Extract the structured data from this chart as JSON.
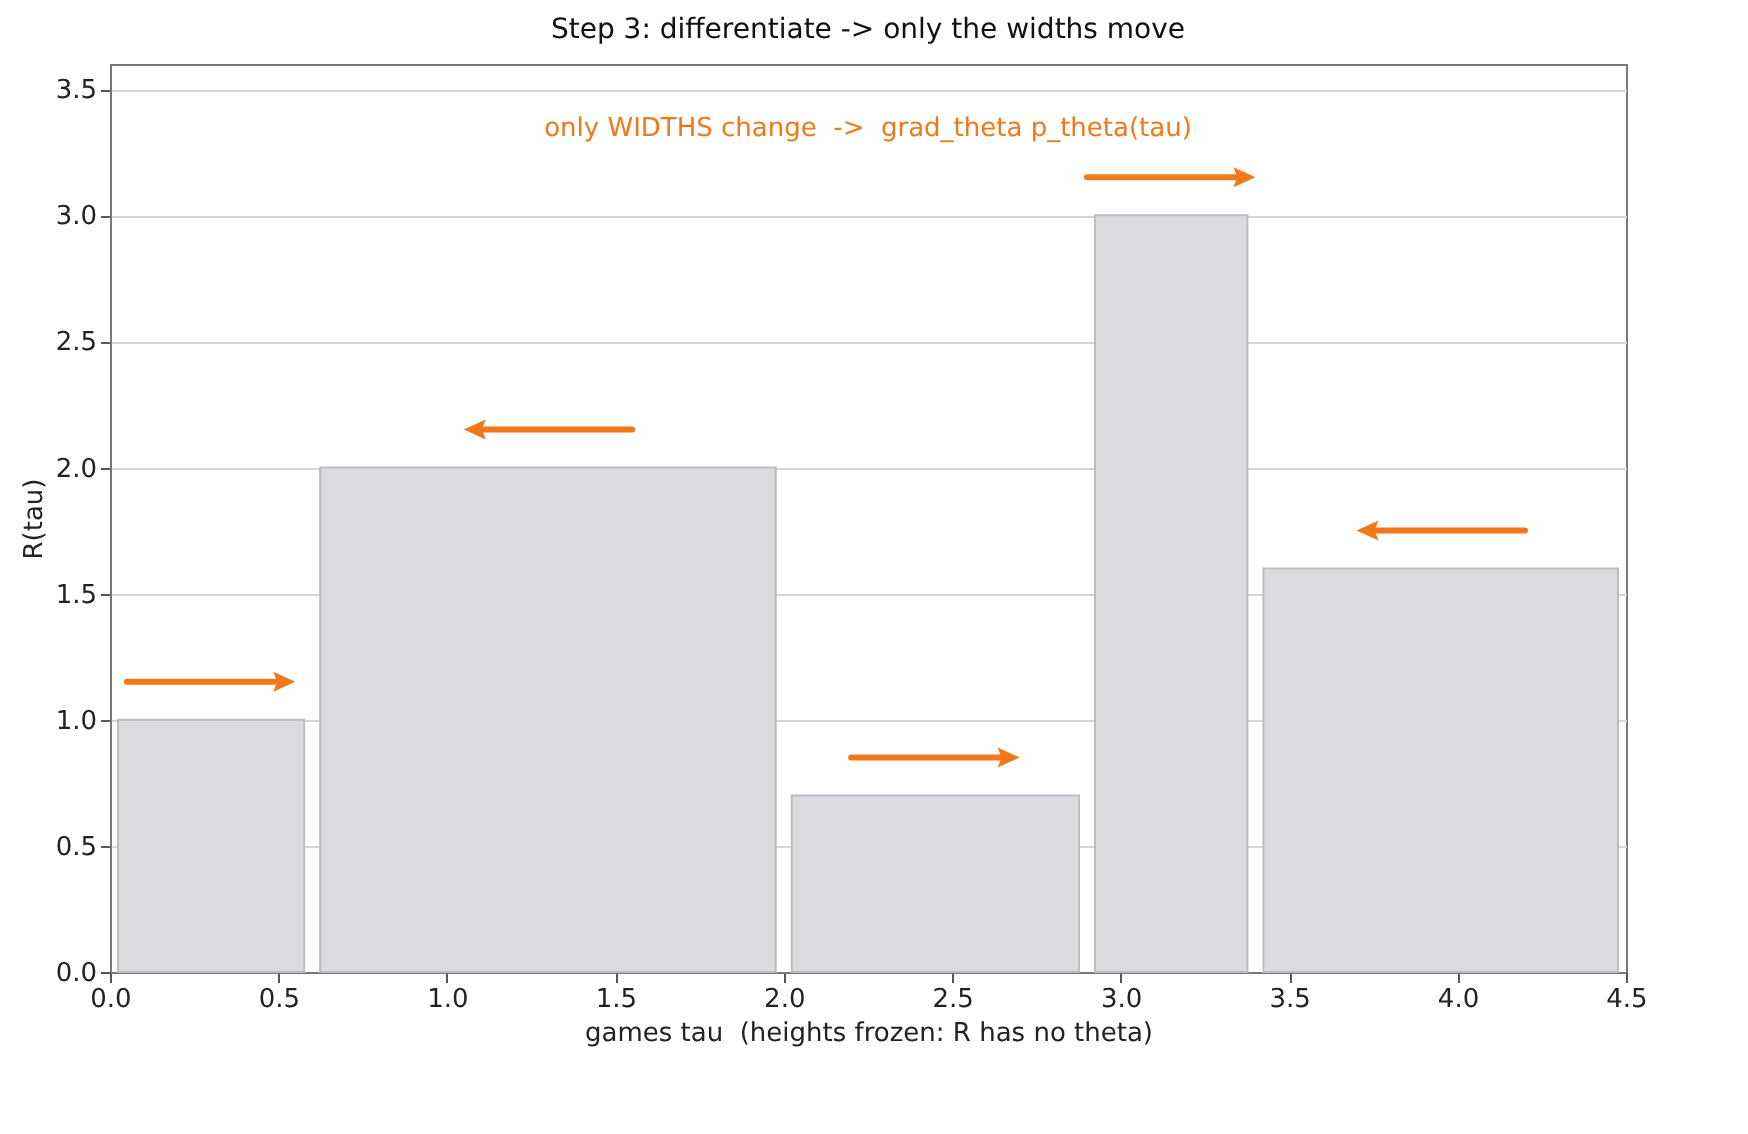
{
  "chart_data": {
    "type": "histogram",
    "title": "Step 3: differentiate -> only the widths move",
    "xlabel": "games tau  (heights frozen: R has no theta)",
    "ylabel": "R(tau)",
    "annotations": [
      "only WIDTHS change  ->  grad_theta p_theta(tau)"
    ],
    "bins": [
      0,
      0.6,
      2.0,
      2.9,
      3.4,
      4.5
    ],
    "values": [
      1.0,
      2.0,
      0.7,
      3.0,
      1.6
    ],
    "color": "#d9dbde",
    "xlim": [
      0,
      4.5
    ],
    "xticks": [
      {
        "value": 0,
        "label": "0.0"
      },
      0.5,
      {
        "value": 1,
        "label": "1.0"
      },
      1.5,
      {
        "value": 2,
        "label": "2.0"
      },
      2.5,
      {
        "value": 3,
        "label": "3.0"
      },
      3.5,
      {
        "value": 4,
        "label": "4.0"
      },
      4.5
    ],
    "ylim": [
      0,
      3.6
    ],
    "yticks": [
      {
        "value": 0,
        "label": "0.0"
      },
      0.5,
      {
        "value": 1,
        "label": "1.0"
      },
      1.5,
      {
        "value": 2,
        "label": "2.0"
      },
      2.5,
      {
        "value": 3,
        "label": "3.0"
      },
      3.5
    ],
    "grid": "y"
  }
}
